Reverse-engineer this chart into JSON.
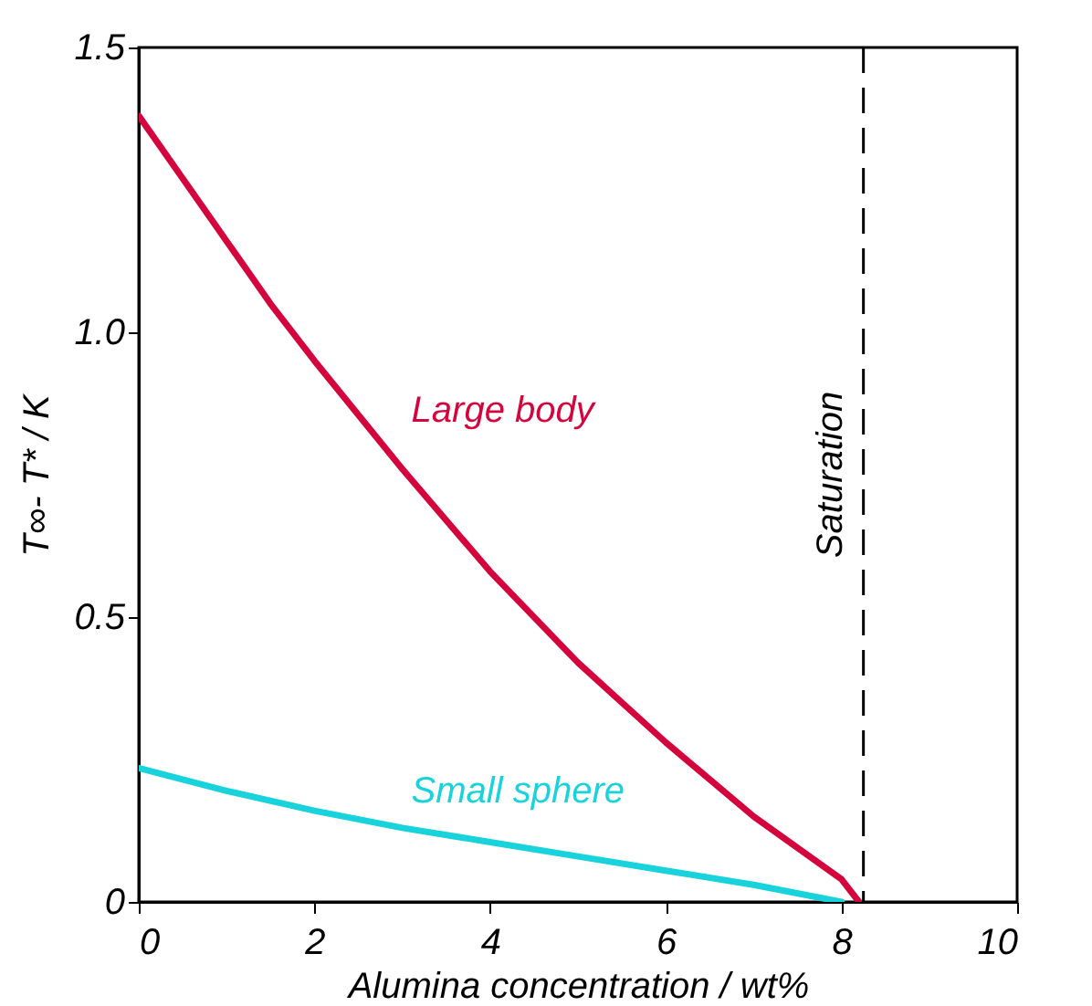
{
  "chart_data": {
    "type": "line",
    "xlabel": "Alumina concentration  /  wt%",
    "ylabel": "T∞- T* / K",
    "xlim": [
      0,
      10
    ],
    "xticks": [
      0,
      2,
      4,
      6,
      8,
      10
    ],
    "ylim": [
      0,
      1.5
    ],
    "yticks": [
      0,
      {
        "value": 0.5,
        "label": "0.5"
      },
      {
        "value": 1,
        "label": "1.0"
      },
      {
        "value": 1.5,
        "label": "1.5"
      }
    ],
    "grid": false,
    "series": [
      {
        "name": "Large body",
        "color": "#d4053d",
        "x": [
          0,
          0.5,
          1,
          1.5,
          2,
          3,
          4,
          5,
          6,
          7,
          8,
          8.2
        ],
        "values": [
          1.38,
          1.27,
          1.16,
          1.05,
          0.95,
          0.76,
          0.58,
          0.42,
          0.28,
          0.15,
          0.04,
          0
        ]
      },
      {
        "name": "Small sphere",
        "color": "#18d2dc",
        "x": [
          0,
          1,
          2,
          3,
          4,
          5,
          6,
          7,
          8
        ],
        "values": [
          0.235,
          0.195,
          0.16,
          0.13,
          0.105,
          0.08,
          0.055,
          0.03,
          0
        ]
      }
    ],
    "ref_lines": [
      {
        "axis": "x",
        "value": 8.25,
        "label": "Saturation",
        "line_style": "dashed",
        "color": "#000000"
      }
    ]
  }
}
